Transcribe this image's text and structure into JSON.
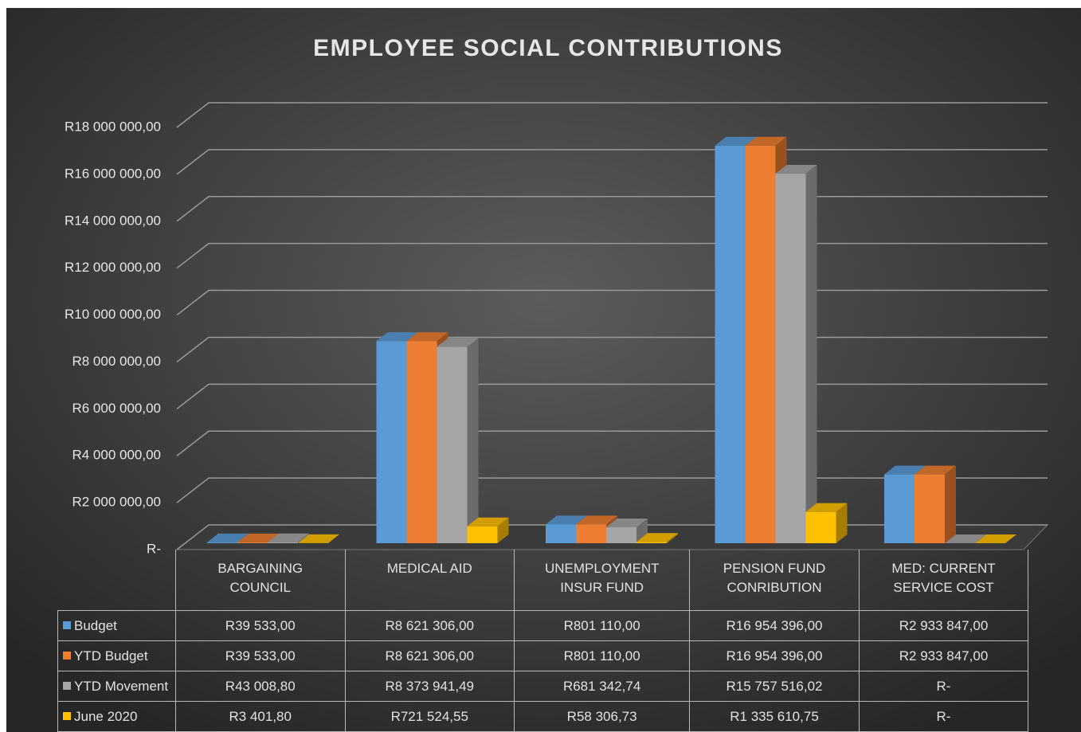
{
  "chart_data": {
    "type": "bar3d",
    "title": "EMPLOYEE SOCIAL CONTRIBUTIONS",
    "categories": [
      "BARGAINING COUNCIL",
      "MEDICAL AID",
      "UNEMPLOYMENT INSUR FUND",
      "PENSION FUND CONRIBUTION",
      "MED: CURRENT SERVICE COST"
    ],
    "series": [
      {
        "name": "Budget",
        "color": "#5b9bd5",
        "values": [
          39533,
          8621306,
          801110,
          16954396,
          2933847
        ],
        "value_labels": [
          "R39 533,00",
          "R8 621 306,00",
          "R801 110,00",
          "R16 954 396,00",
          "R2 933 847,00"
        ]
      },
      {
        "name": "YTD Budget",
        "color": "#ed7d31",
        "values": [
          39533,
          8621306,
          801110,
          16954396,
          2933847
        ],
        "value_labels": [
          "R39 533,00",
          "R8 621 306,00",
          "R801 110,00",
          "R16 954 396,00",
          "R2 933 847,00"
        ]
      },
      {
        "name": "YTD Movement",
        "color": "#a5a5a5",
        "values": [
          43008.8,
          8373941.49,
          681342.74,
          15757516.02,
          0
        ],
        "value_labels": [
          "R43 008,80",
          "R8 373 941,49",
          "R681 342,74",
          "R15 757 516,02",
          "R-"
        ]
      },
      {
        "name": "June 2020",
        "color": "#ffc000",
        "values": [
          3401.8,
          721524.55,
          58306.73,
          1335610.75,
          0
        ],
        "value_labels": [
          "R3 401,80",
          "R721 524,55",
          "R58 306,73",
          "R1 335 610,75",
          "R-"
        ]
      }
    ],
    "ylim": [
      0,
      18000000
    ],
    "yticks": [
      {
        "value": 0,
        "label": "R-"
      },
      {
        "value": 2000000,
        "label": "R2 000 000,00"
      },
      {
        "value": 4000000,
        "label": "R4 000 000,00"
      },
      {
        "value": 6000000,
        "label": "R6 000 000,00"
      },
      {
        "value": 8000000,
        "label": "R8 000 000,00"
      },
      {
        "value": 10000000,
        "label": "R10 000 000,00"
      },
      {
        "value": 12000000,
        "label": "R12 000 000,00"
      },
      {
        "value": 14000000,
        "label": "R14 000 000,00"
      },
      {
        "value": 16000000,
        "label": "R16 000 000,00"
      },
      {
        "value": 18000000,
        "label": "R18 000 000,00"
      }
    ],
    "grid": true,
    "legend": "table"
  }
}
